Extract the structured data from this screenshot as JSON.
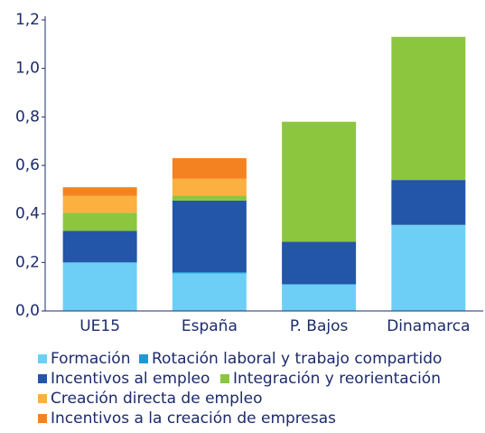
{
  "chart_data": {
    "type": "stacked_bar",
    "categories": [
      "UE15",
      "España",
      "P. Bajos",
      "Dinamarca"
    ],
    "series": [
      {
        "name": "Formación",
        "color": "#6dcff6",
        "values": [
          0.2,
          0.155,
          0.11,
          0.355
        ]
      },
      {
        "name": "Rotación laboral y trabajo compartido",
        "color": "#1b9ad6",
        "values": [
          0,
          0.005,
          0,
          0
        ]
      },
      {
        "name": "Incentivos al empleo",
        "color": "#2356a8",
        "values": [
          0.13,
          0.295,
          0.175,
          0.185
        ]
      },
      {
        "name": "Integración y reorientación",
        "color": "#8cc63f",
        "values": [
          0.075,
          0.02,
          0.495,
          0.59
        ]
      },
      {
        "name": "Creación directa de empleo",
        "color": "#fbb040",
        "values": [
          0.07,
          0.07,
          0,
          0
        ]
      },
      {
        "name": "Incentivos a la creación de empresas",
        "color": "#f58220",
        "values": [
          0.035,
          0.085,
          0,
          0
        ]
      }
    ],
    "ylim": [
      0,
      1.2
    ],
    "yticks": [
      {
        "value": 0,
        "label": "0,0"
      },
      {
        "value": 0.2,
        "label": "0,2"
      },
      {
        "value": 0.4,
        "label": "0,4"
      },
      {
        "value": 0.6,
        "label": "0,6"
      },
      {
        "value": 0.8,
        "label": "0,8"
      },
      {
        "value": 1.0,
        "label": "1,0"
      },
      {
        "value": 1.2,
        "label": "1,2"
      }
    ]
  }
}
